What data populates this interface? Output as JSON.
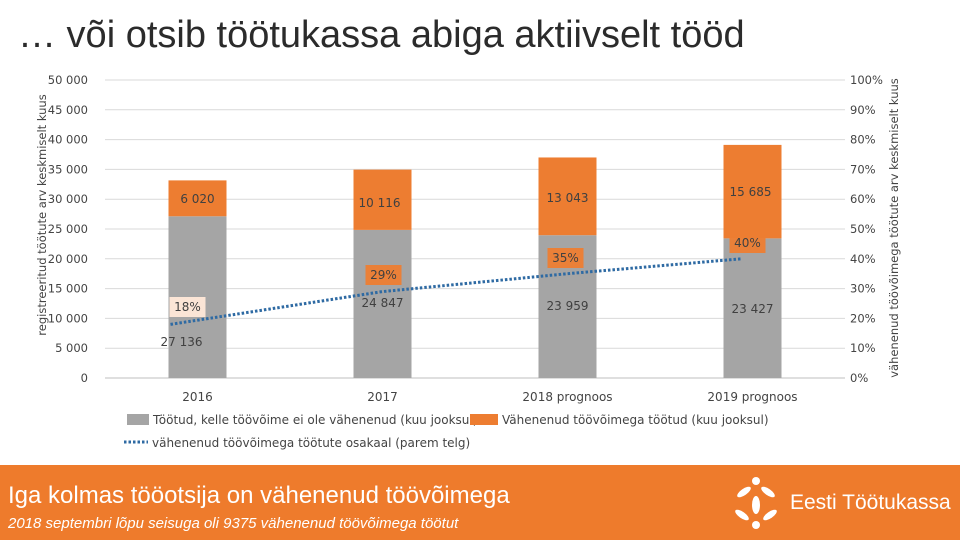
{
  "slide": {
    "title": "… või otsib töötukassa abiga aktiivselt tööd"
  },
  "footer": {
    "headline": "Iga kolmas tööotsija on vähenenud töövõimega",
    "subtitle": "2018 septembri lõpu seisuga oli 9375 vähenenud töövõimega töötut",
    "logo_text": "Eesti Töötukassa"
  },
  "colors": {
    "series_gray": "#a5a5a5",
    "series_orange": "#ed7d31",
    "line_blue": "#2e6aa3",
    "footer_bg": "#ee7b2c"
  },
  "chart_data": {
    "type": "bar",
    "stacked": true,
    "categories": [
      "2016",
      "2017",
      "2018 prognoos",
      "2019 prognoos"
    ],
    "series": [
      {
        "name": "Töötud, kelle töövõime ei ole vähenenud (kuu jooksul)",
        "values": [
          27136,
          24847,
          23959,
          23427
        ],
        "labels": [
          "27 136",
          "24 847",
          "23 959",
          "23 427"
        ],
        "color": "#a5a5a5"
      },
      {
        "name": "Vähenenud töövõimega töötud (kuu jooksul)",
        "values": [
          6020,
          10116,
          13043,
          15685
        ],
        "labels": [
          "6 020",
          "10 116",
          "13 043",
          "15 685"
        ],
        "color": "#ed7d31"
      }
    ],
    "line_series": {
      "name": "vähenenud töövõimega töötute osakaal (parem telg)",
      "axis": "right",
      "values": [
        18,
        29,
        35,
        40
      ],
      "labels": [
        "18%",
        "29%",
        "35%",
        "40%"
      ],
      "color": "#2e6aa3",
      "style": "dotted"
    },
    "ylabel": "registreeritud töötute arv keskmiselt kuus",
    "y2label": "vähenenud töövõimega töötute arv keskmiselt kuus",
    "ylim": [
      0,
      50000
    ],
    "y2lim": [
      0,
      100
    ],
    "yticks": [
      "0",
      "5 000",
      "10 000",
      "15 000",
      "20 000",
      "25 000",
      "30 000",
      "35 000",
      "40 000",
      "45 000",
      "50 000"
    ],
    "y2ticks": [
      "0%",
      "10%",
      "20%",
      "30%",
      "40%",
      "50%",
      "60%",
      "70%",
      "80%",
      "90%",
      "100%"
    ],
    "grid": true,
    "legend_position": "bottom"
  }
}
